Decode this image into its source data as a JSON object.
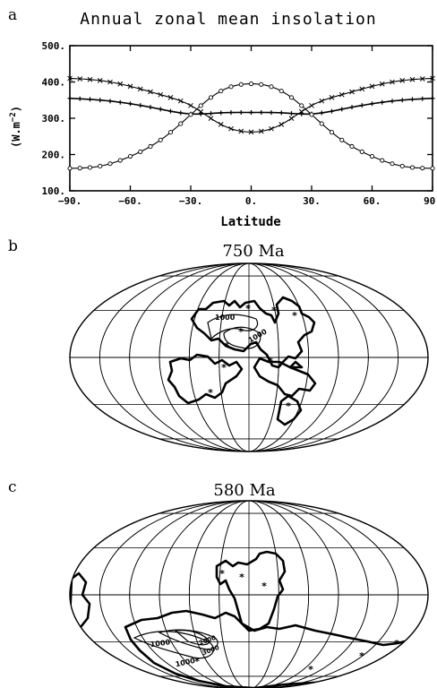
{
  "panels": {
    "a": {
      "letter": "a"
    },
    "b": {
      "letter": "b",
      "title": "750 Ma",
      "contour_labels": [
        "1000",
        "1000"
      ]
    },
    "c": {
      "letter": "c",
      "title": "580 Ma",
      "contour_labels": [
        "1000",
        "1000",
        "2000",
        "3000"
      ]
    }
  },
  "chart_data": {
    "type": "line",
    "title": "Annual zonal mean insolation",
    "xlabel": "Latitude",
    "ylabel": "(W.m^-2)",
    "ylabel_main": "(W.m",
    "ylabel_exp": "−2",
    "ylabel_end": ")",
    "xlim": [
      -90,
      90
    ],
    "ylim": [
      100,
      500
    ],
    "x_ticks": [
      "−90.",
      "−60.",
      "−30.",
      "0.",
      "30.",
      "60.",
      "90."
    ],
    "y_ticks": [
      "100.",
      "200.",
      "300.",
      "400.",
      "500."
    ],
    "grid": false,
    "x": [
      -90,
      -75,
      -60,
      -45,
      -30,
      -15,
      0,
      15,
      30,
      45,
      60,
      75,
      90
    ],
    "series": [
      {
        "values": [
          410,
          404,
          388,
          365,
          335,
          283,
          262,
          283,
          335,
          365,
          388,
          404,
          410
        ]
      },
      {
        "values": [
          355,
          350,
          340,
          325,
          312,
          315,
          316,
          315,
          312,
          325,
          340,
          350,
          355
        ]
      },
      {
        "values": [
          162,
          168,
          195,
          240,
          310,
          375,
          395,
          375,
          310,
          240,
          195,
          168,
          162
        ]
      }
    ]
  }
}
